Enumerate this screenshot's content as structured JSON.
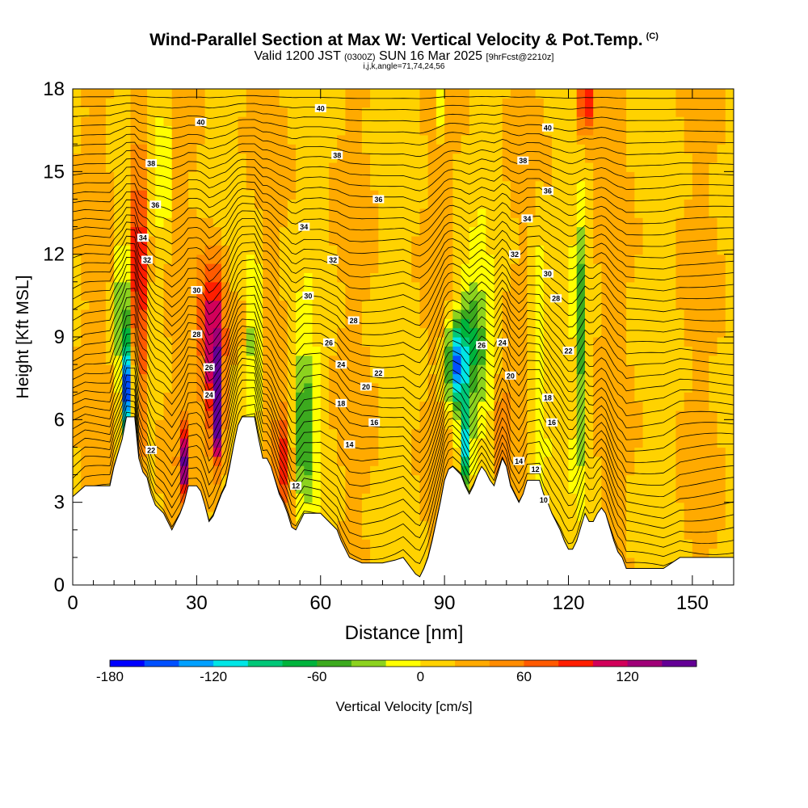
{
  "header": {
    "title": "Wind-Parallel Section at Max W: Vertical Velocity & Pot.Temp.",
    "copyright": "(C)",
    "valid_prefix": "Valid 1200 JST",
    "valid_utc": "(0300Z)",
    "valid_date": "SUN 16 Mar 2025",
    "forecast": "[9hrFcst@2210z]",
    "indices": "i,j,k,angle=71,74,24,56"
  },
  "chart_data": {
    "type": "heatmap",
    "xlabel": "Distance [nm]",
    "ylabel": "Height [Kft MSL]",
    "xlim": [
      0,
      160
    ],
    "ylim": [
      0,
      18
    ],
    "x_ticks": [
      0,
      30,
      60,
      90,
      120,
      150
    ],
    "y_ticks": [
      0,
      3,
      6,
      9,
      12,
      15,
      18
    ],
    "colorbar": {
      "label": "Vertical Velocity [cm/s]",
      "tick_values": [
        -180,
        -120,
        -60,
        0,
        60,
        120
      ],
      "tick_labels": [
        "-180",
        "-120",
        "-60",
        "0",
        "60",
        "120"
      ],
      "bins": [
        -180,
        -160,
        -140,
        -120,
        -100,
        -80,
        -60,
        -40,
        -20,
        0,
        20,
        40,
        60,
        80,
        100,
        120,
        140,
        160
      ],
      "colors": [
        "#0000ff",
        "#0050ff",
        "#00a0ff",
        "#00e6e6",
        "#00c878",
        "#00b43c",
        "#3caa1e",
        "#8cd21e",
        "#ffff00",
        "#ffd200",
        "#ffaa00",
        "#ff8c00",
        "#ff5a00",
        "#ff1e00",
        "#d2005a",
        "#a00078",
        "#640096"
      ]
    },
    "terrain_kft": [
      [
        0,
        3.2
      ],
      [
        3,
        3.6
      ],
      [
        9,
        3.6
      ],
      [
        10,
        4.3
      ],
      [
        12,
        5.3
      ],
      [
        13,
        6.1
      ],
      [
        15,
        6.1
      ],
      [
        16,
        4.6
      ],
      [
        17,
        4.1
      ],
      [
        18,
        3.9
      ],
      [
        19,
        3.3
      ],
      [
        20,
        2.9
      ],
      [
        22,
        2.6
      ],
      [
        23,
        2.3
      ],
      [
        24,
        2.0
      ],
      [
        25,
        2.3
      ],
      [
        26,
        2.6
      ],
      [
        27,
        3.0
      ],
      [
        28,
        3.6
      ],
      [
        29,
        3.6
      ],
      [
        30,
        3.6
      ],
      [
        31,
        3.4
      ],
      [
        32,
        2.9
      ],
      [
        33,
        2.3
      ],
      [
        34,
        2.5
      ],
      [
        35,
        2.9
      ],
      [
        36,
        3.3
      ],
      [
        37,
        3.6
      ],
      [
        38,
        4.3
      ],
      [
        39,
        5.1
      ],
      [
        40,
        5.8
      ],
      [
        41,
        6.1
      ],
      [
        44,
        6.1
      ],
      [
        45,
        5.3
      ],
      [
        46,
        4.6
      ],
      [
        47,
        4.6
      ],
      [
        48,
        4.3
      ],
      [
        49,
        3.8
      ],
      [
        50,
        3.3
      ],
      [
        51,
        3.0
      ],
      [
        52,
        2.6
      ],
      [
        53,
        2.1
      ],
      [
        54,
        2.0
      ],
      [
        55,
        2.3
      ],
      [
        56,
        2.6
      ],
      [
        58,
        2.6
      ],
      [
        60,
        2.6
      ],
      [
        62,
        2.3
      ],
      [
        64,
        2.0
      ],
      [
        65,
        1.6
      ],
      [
        66,
        1.3
      ],
      [
        67,
        1.0
      ],
      [
        70,
        0.8
      ],
      [
        75,
        0.8
      ],
      [
        78,
        0.9
      ],
      [
        80,
        1.0
      ],
      [
        81,
        0.8
      ],
      [
        82,
        0.6
      ],
      [
        83,
        0.4
      ],
      [
        84,
        0.3
      ],
      [
        85,
        0.6
      ],
      [
        86,
        1.0
      ],
      [
        87,
        1.6
      ],
      [
        88,
        2.3
      ],
      [
        89,
        3.0
      ],
      [
        90,
        3.8
      ],
      [
        91,
        4.2
      ],
      [
        92,
        4.3
      ],
      [
        94,
        4.0
      ],
      [
        95,
        3.6
      ],
      [
        96,
        3.3
      ],
      [
        97,
        3.6
      ],
      [
        98,
        4.0
      ],
      [
        99,
        4.3
      ],
      [
        100,
        4.1
      ],
      [
        101,
        3.8
      ],
      [
        102,
        3.6
      ],
      [
        103,
        4.1
      ],
      [
        104,
        4.6
      ],
      [
        105,
        4.3
      ],
      [
        106,
        3.6
      ],
      [
        107,
        3.3
      ],
      [
        108,
        3.0
      ],
      [
        109,
        3.3
      ],
      [
        110,
        3.8
      ],
      [
        113,
        3.8
      ],
      [
        114,
        3.3
      ],
      [
        115,
        3.0
      ],
      [
        116,
        2.6
      ],
      [
        117,
        2.3
      ],
      [
        118,
        2.0
      ],
      [
        119,
        1.6
      ],
      [
        120,
        1.3
      ],
      [
        121,
        1.3
      ],
      [
        122,
        1.6
      ],
      [
        123,
        2.1
      ],
      [
        124,
        2.6
      ],
      [
        125,
        2.3
      ],
      [
        126,
        2.3
      ],
      [
        127,
        2.6
      ],
      [
        128,
        2.8
      ],
      [
        129,
        2.6
      ],
      [
        130,
        2.1
      ],
      [
        131,
        1.6
      ],
      [
        132,
        1.2
      ],
      [
        133,
        1.0
      ],
      [
        134,
        0.6
      ],
      [
        135,
        0.6
      ],
      [
        143,
        0.6
      ],
      [
        145,
        0.8
      ],
      [
        147,
        1.0
      ],
      [
        160,
        1.0
      ]
    ],
    "velocity_features": [
      {
        "x": 16,
        "z": 11,
        "dx": 1.6,
        "dz": 6,
        "w": 110
      },
      {
        "x": 13.5,
        "z": 7,
        "dx": 1.4,
        "dz": 1.8,
        "w": -170
      },
      {
        "x": 12,
        "z": 10,
        "dx": 1.5,
        "dz": 3,
        "w": -60
      },
      {
        "x": 34,
        "z": 9,
        "dx": 3.2,
        "dz": 3,
        "w": 110
      },
      {
        "x": 35,
        "z": 6.3,
        "dx": 1.5,
        "dz": 1.8,
        "w": 150
      },
      {
        "x": 27,
        "z": 4.5,
        "dx": 1.2,
        "dz": 1.4,
        "w": 110
      },
      {
        "x": 22,
        "z": 15,
        "dx": 1.5,
        "dz": 3,
        "w": -50
      },
      {
        "x": 44,
        "z": 9,
        "dx": 1.4,
        "dz": 3,
        "w": -80
      },
      {
        "x": 51,
        "z": 4.5,
        "dx": 2.2,
        "dz": 1.8,
        "w": 80
      },
      {
        "x": 56,
        "z": 6,
        "dx": 3,
        "dz": 3,
        "w": -70
      },
      {
        "x": 93,
        "z": 8,
        "dx": 2.4,
        "dz": 1.5,
        "w": -150
      },
      {
        "x": 97,
        "z": 9,
        "dx": 4,
        "dz": 2.5,
        "w": -70
      },
      {
        "x": 95,
        "z": 5,
        "dx": 1.5,
        "dz": 1.5,
        "w": -120
      },
      {
        "x": 104,
        "z": 5.5,
        "dx": 2,
        "dz": 2,
        "w": 60
      },
      {
        "x": 113,
        "z": 7,
        "dx": 2,
        "dz": 6,
        "w": -40
      },
      {
        "x": 123,
        "z": 9,
        "dx": 1.5,
        "dz": 5,
        "w": -60
      },
      {
        "x": 124,
        "z": 17.5,
        "dx": 2,
        "dz": 1.2,
        "w": 100
      },
      {
        "x": 89,
        "z": 17.5,
        "dx": 1,
        "dz": 1,
        "w": -50
      }
    ],
    "contour_labels": [
      {
        "x": 31,
        "z": 16.8,
        "v": "40"
      },
      {
        "x": 60,
        "z": 17.3,
        "v": "40"
      },
      {
        "x": 115,
        "z": 16.6,
        "v": "40"
      },
      {
        "x": 19,
        "z": 15.3,
        "v": "38"
      },
      {
        "x": 64,
        "z": 15.6,
        "v": "38"
      },
      {
        "x": 109,
        "z": 15.4,
        "v": "38"
      },
      {
        "x": 20,
        "z": 13.8,
        "v": "36"
      },
      {
        "x": 74,
        "z": 14.0,
        "v": "36"
      },
      {
        "x": 115,
        "z": 14.3,
        "v": "36"
      },
      {
        "x": 17,
        "z": 12.6,
        "v": "34"
      },
      {
        "x": 56,
        "z": 13.0,
        "v": "34"
      },
      {
        "x": 110,
        "z": 13.3,
        "v": "34"
      },
      {
        "x": 18,
        "z": 11.8,
        "v": "32"
      },
      {
        "x": 63,
        "z": 11.8,
        "v": "32"
      },
      {
        "x": 107,
        "z": 12.0,
        "v": "32"
      },
      {
        "x": 30,
        "z": 10.7,
        "v": "30"
      },
      {
        "x": 57,
        "z": 10.5,
        "v": "30"
      },
      {
        "x": 115,
        "z": 11.3,
        "v": "30"
      },
      {
        "x": 30,
        "z": 9.1,
        "v": "28"
      },
      {
        "x": 68,
        "z": 9.6,
        "v": "28"
      },
      {
        "x": 117,
        "z": 10.4,
        "v": "28"
      },
      {
        "x": 33,
        "z": 7.9,
        "v": "26"
      },
      {
        "x": 62,
        "z": 8.8,
        "v": "26"
      },
      {
        "x": 99,
        "z": 8.7,
        "v": "26"
      },
      {
        "x": 33,
        "z": 6.9,
        "v": "24"
      },
      {
        "x": 65,
        "z": 8.0,
        "v": "24"
      },
      {
        "x": 104,
        "z": 8.8,
        "v": "24"
      },
      {
        "x": 19,
        "z": 4.9,
        "v": "22"
      },
      {
        "x": 74,
        "z": 7.7,
        "v": "22"
      },
      {
        "x": 120,
        "z": 8.5,
        "v": "22"
      },
      {
        "x": 71,
        "z": 7.2,
        "v": "20"
      },
      {
        "x": 106,
        "z": 7.6,
        "v": "20"
      },
      {
        "x": 65,
        "z": 6.6,
        "v": "18"
      },
      {
        "x": 115,
        "z": 6.8,
        "v": "18"
      },
      {
        "x": 73,
        "z": 5.9,
        "v": "16"
      },
      {
        "x": 116,
        "z": 5.9,
        "v": "16"
      },
      {
        "x": 67,
        "z": 5.1,
        "v": "14"
      },
      {
        "x": 108,
        "z": 4.5,
        "v": "14"
      },
      {
        "x": 54,
        "z": 3.6,
        "v": "12"
      },
      {
        "x": 112,
        "z": 4.2,
        "v": "12"
      },
      {
        "x": 114,
        "z": 3.1,
        "v": "10"
      }
    ]
  }
}
